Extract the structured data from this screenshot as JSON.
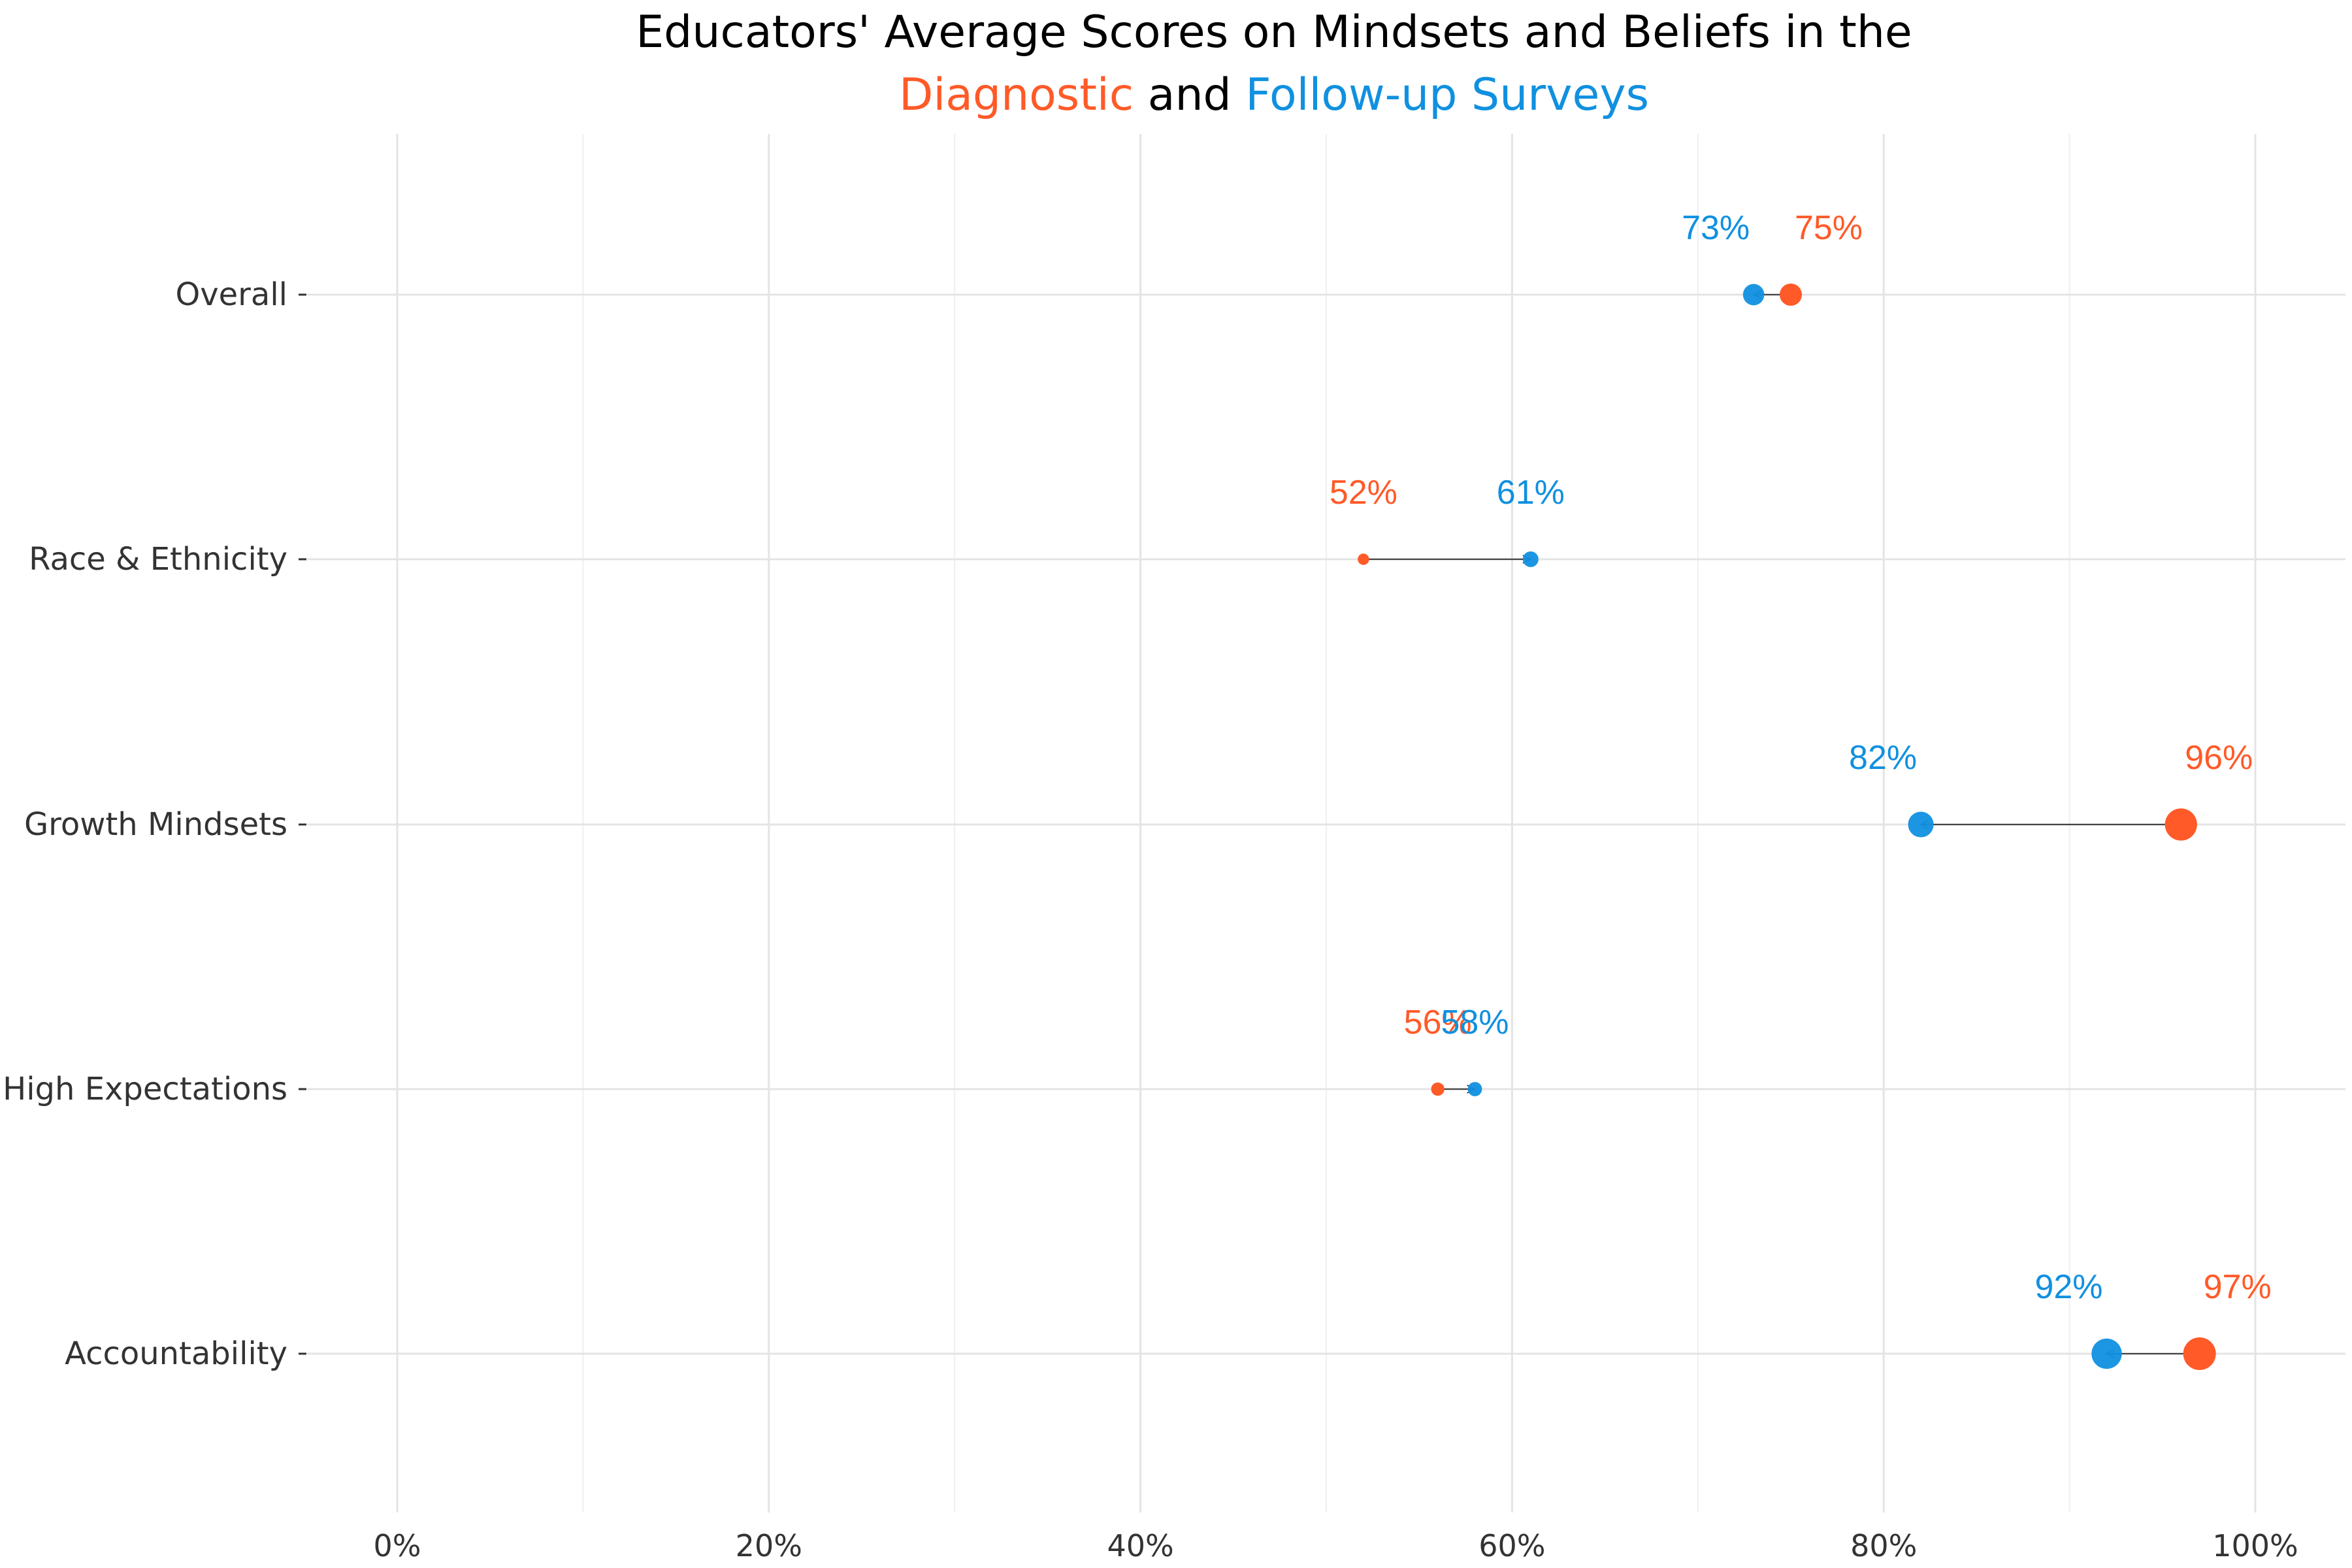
{
  "chart_data": {
    "type": "scatter",
    "title": {
      "line1": "Educators' Average Scores on Mindsets and Beliefs in the",
      "line2_parts": [
        {
          "text": "Diagnostic",
          "series": "diagnostic"
        },
        {
          "text": " and ",
          "series": null
        },
        {
          "text": "Follow-up Surveys",
          "series": "followup"
        }
      ]
    },
    "xlabel": "",
    "ylabel": "",
    "xlim": [
      -5,
      105
    ],
    "x_ticks": [
      0,
      20,
      40,
      60,
      80,
      100
    ],
    "x_tick_labels": [
      "0%",
      "20%",
      "40%",
      "60%",
      "80%",
      "100%"
    ],
    "grid": true,
    "categories": [
      "Overall",
      "Race & Ethnicity",
      "Growth Mindsets",
      "High Expectations",
      "Accountability"
    ],
    "series": [
      {
        "key": "diagnostic",
        "color": "#FF5A28",
        "values": [
          75,
          52,
          96,
          56,
          97
        ],
        "labels": [
          "75%",
          "52%",
          "96%",
          "56%",
          "97%"
        ]
      },
      {
        "key": "followup",
        "color": "#1090E0",
        "values": [
          73,
          61,
          82,
          58,
          92
        ],
        "labels": [
          "73%",
          "61%",
          "82%",
          "58%",
          "92%"
        ]
      }
    ],
    "arrows": "from diagnostic to follow-up"
  }
}
